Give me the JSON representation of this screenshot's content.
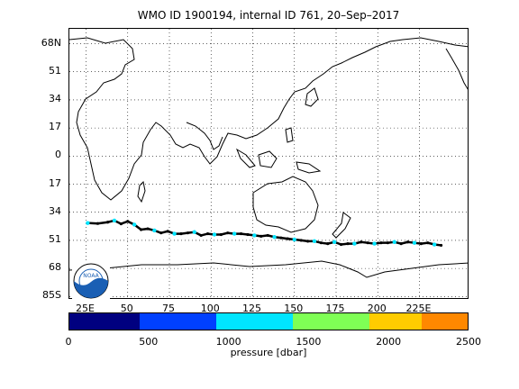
{
  "title": "WMO ID 1900194, internal ID 761, 20–Sep–2017",
  "map": {
    "lat_labels": [
      "68N",
      "51",
      "34",
      "17",
      "0",
      "17",
      "34",
      "51",
      "68",
      "85S"
    ],
    "lat_values": [
      68,
      51,
      34,
      17,
      0,
      -17,
      -34,
      -51,
      -68,
      -85
    ],
    "lon_labels": [
      "25E",
      "50",
      "75",
      "100",
      "125",
      "150",
      "175",
      "200",
      "225E"
    ],
    "lon_values": [
      25,
      50,
      75,
      100,
      125,
      150,
      175,
      200,
      225
    ],
    "lon_range": [
      15,
      255
    ],
    "lat_range": [
      77,
      -87
    ],
    "grid": true,
    "logo": "noaa-logo",
    "track": {
      "lons": [
        26,
        32,
        38,
        42,
        46,
        50,
        54,
        58,
        62,
        66,
        70,
        74,
        78,
        82,
        86,
        90,
        94,
        98,
        102,
        106,
        110,
        114,
        118,
        122,
        126,
        130,
        134,
        138,
        142,
        146,
        150,
        154,
        158,
        162,
        166,
        170,
        174,
        178,
        182,
        186,
        190,
        194,
        198,
        202,
        206,
        210,
        214,
        218,
        222,
        226,
        230,
        234,
        238
      ],
      "lats": [
        -40.5,
        -40.8,
        -40.0,
        -39.0,
        -41.0,
        -39.5,
        -41.5,
        -44.5,
        -44.0,
        -45.0,
        -46.5,
        -45.5,
        -47.0,
        -47.0,
        -46.5,
        -46.0,
        -48.0,
        -47.0,
        -47.5,
        -47.5,
        -46.5,
        -47.0,
        -47.0,
        -47.5,
        -48.0,
        -48.5,
        -48.0,
        -49.0,
        -49.5,
        -50.0,
        -50.5,
        -51.0,
        -51.5,
        -51.5,
        -52.5,
        -53.0,
        -52.0,
        -53.5,
        -53.0,
        -53.0,
        -52.0,
        -52.5,
        -53.0,
        -52.5,
        -52.5,
        -52.0,
        -53.0,
        -52.0,
        -52.5,
        -53.0,
        -52.5,
        -53.5,
        -54.0
      ]
    }
  },
  "colorbar": {
    "label": "pressure [dbar]",
    "range": [
      0,
      2500
    ],
    "ticks": [
      "0",
      "500",
      "1000",
      "1500",
      "2000",
      "2500"
    ],
    "tick_values": [
      0,
      500,
      1000,
      1500,
      2000,
      2500
    ],
    "colors": [
      "#000080",
      "#0040ff",
      "#00e5ff",
      "#7fff55",
      "#ffcc00",
      "#ff8800"
    ]
  }
}
